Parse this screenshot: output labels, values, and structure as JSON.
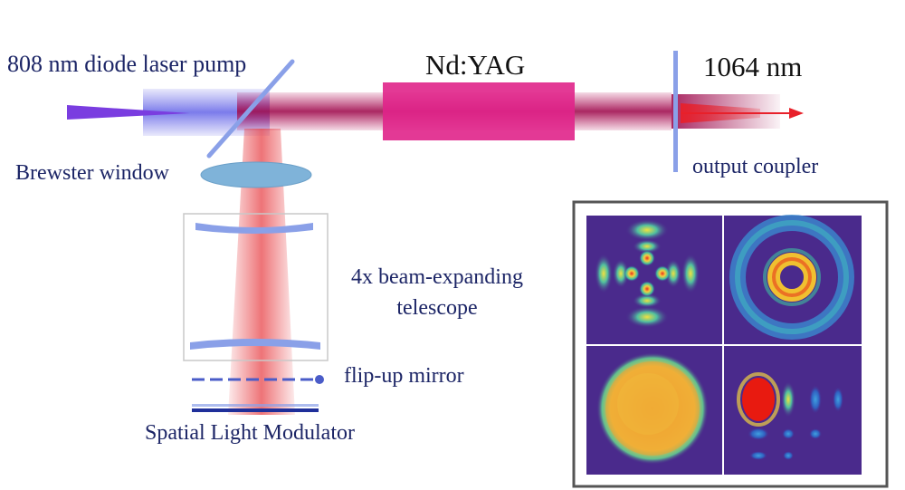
{
  "labels": {
    "pump": "808 nm diode laser pump",
    "crystal": "Nd:YAG",
    "output_wavelength": "1064 nm",
    "brewster": "Brewster window",
    "output_coupler": "output coupler",
    "telescope": "4x beam-expanding telescope",
    "flip_mirror": "flip-up mirror",
    "slm": "Spatial Light Modulator"
  },
  "colors": {
    "pump_beam": "#5a5ae6",
    "pump_arrow": "#7a3de0",
    "laser_beam": "#b5135a",
    "crystal": "#e0248a",
    "red_beam": "#e8454a",
    "optic": "#8aa0e8",
    "lens": "#7fb3d9",
    "telescope_box": "#c8c8c8",
    "slm": "#1f2f9a",
    "inset_border": "#555555",
    "mode_background": "#4a2a8c"
  },
  "inset": {
    "panels": [
      {
        "pattern": "four-lobe-cross"
      },
      {
        "pattern": "double-ring"
      },
      {
        "pattern": "filled-disk"
      },
      {
        "pattern": "hermite-gaussian-grid"
      }
    ]
  }
}
